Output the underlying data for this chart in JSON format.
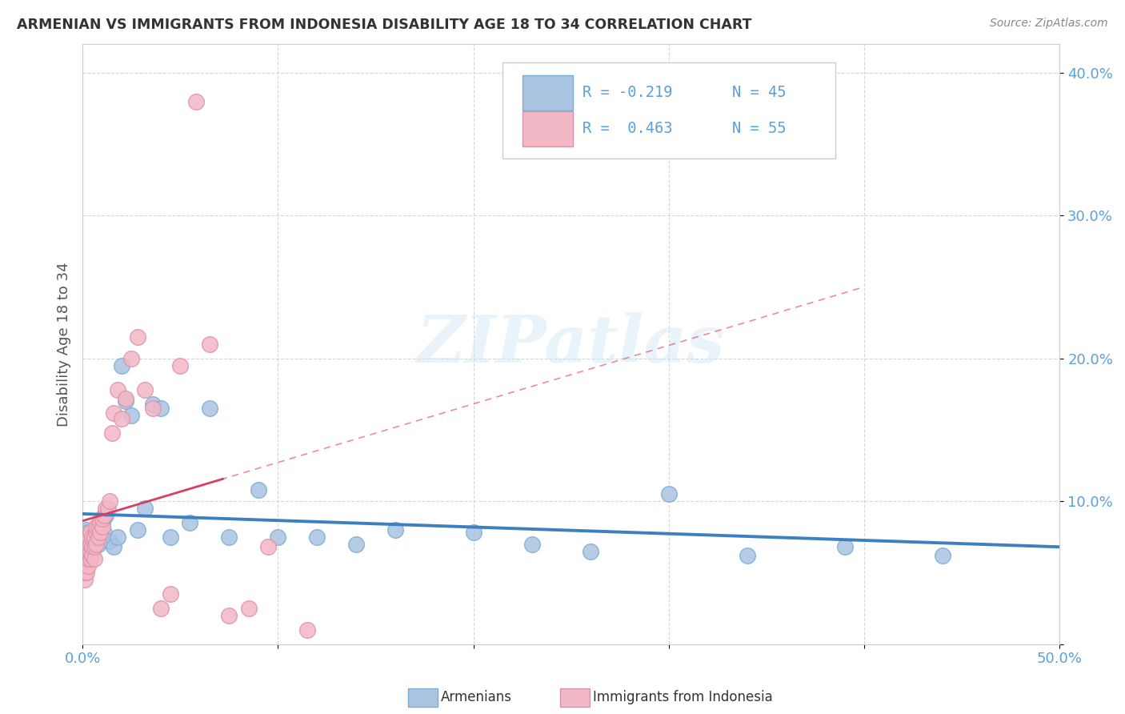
{
  "title": "ARMENIAN VS IMMIGRANTS FROM INDONESIA DISABILITY AGE 18 TO 34 CORRELATION CHART",
  "source": "Source: ZipAtlas.com",
  "ylabel": "Disability Age 18 to 34",
  "xlim": [
    0.0,
    0.5
  ],
  "ylim": [
    0.0,
    0.42
  ],
  "armenian_color": "#aac4e2",
  "armenian_edge_color": "#7aaed4",
  "indonesia_color": "#f2b8c6",
  "indonesia_edge_color": "#e090a8",
  "line_armenian_color": "#3d7fc1",
  "line_indonesia_color": "#d94060",
  "watermark_text": "ZIPatlas",
  "legend_R_armenian": "R = -0.219",
  "legend_N_armenian": "N = 45",
  "legend_R_indonesia": "R =  0.463",
  "legend_N_indonesia": "N = 55",
  "tick_color": "#5ba0d8",
  "axis_label_color": "#555555",
  "title_color": "#333333",
  "grid_color": "#cccccc",
  "background_color": "#ffffff",
  "armenian_x": [
    0.001,
    0.001,
    0.001,
    0.002,
    0.002,
    0.002,
    0.003,
    0.003,
    0.004,
    0.004,
    0.005,
    0.005,
    0.006,
    0.007,
    0.008,
    0.009,
    0.01,
    0.011,
    0.012,
    0.014,
    0.016,
    0.018,
    0.02,
    0.022,
    0.025,
    0.028,
    0.032,
    0.036,
    0.04,
    0.045,
    0.055,
    0.065,
    0.075,
    0.09,
    0.1,
    0.12,
    0.14,
    0.16,
    0.2,
    0.23,
    0.26,
    0.3,
    0.34,
    0.39,
    0.44
  ],
  "armenian_y": [
    0.06,
    0.07,
    0.075,
    0.065,
    0.072,
    0.08,
    0.068,
    0.078,
    0.06,
    0.07,
    0.065,
    0.073,
    0.068,
    0.075,
    0.07,
    0.08,
    0.085,
    0.078,
    0.09,
    0.072,
    0.068,
    0.075,
    0.195,
    0.17,
    0.16,
    0.08,
    0.095,
    0.168,
    0.165,
    0.075,
    0.085,
    0.165,
    0.075,
    0.108,
    0.075,
    0.075,
    0.07,
    0.08,
    0.078,
    0.07,
    0.065,
    0.105,
    0.062,
    0.068,
    0.062
  ],
  "indonesia_x": [
    0.001,
    0.001,
    0.001,
    0.001,
    0.002,
    0.002,
    0.002,
    0.002,
    0.002,
    0.003,
    0.003,
    0.003,
    0.003,
    0.003,
    0.004,
    0.004,
    0.004,
    0.004,
    0.005,
    0.005,
    0.005,
    0.006,
    0.006,
    0.006,
    0.007,
    0.007,
    0.007,
    0.008,
    0.008,
    0.009,
    0.009,
    0.01,
    0.01,
    0.011,
    0.012,
    0.013,
    0.014,
    0.015,
    0.016,
    0.018,
    0.02,
    0.022,
    0.025,
    0.028,
    0.032,
    0.036,
    0.04,
    0.045,
    0.05,
    0.058,
    0.065,
    0.075,
    0.085,
    0.095,
    0.115
  ],
  "indonesia_y": [
    0.045,
    0.05,
    0.055,
    0.06,
    0.05,
    0.058,
    0.062,
    0.068,
    0.072,
    0.055,
    0.06,
    0.065,
    0.07,
    0.075,
    0.06,
    0.065,
    0.07,
    0.078,
    0.062,
    0.068,
    0.075,
    0.06,
    0.068,
    0.075,
    0.07,
    0.078,
    0.082,
    0.075,
    0.082,
    0.078,
    0.085,
    0.082,
    0.088,
    0.09,
    0.095,
    0.095,
    0.1,
    0.148,
    0.162,
    0.178,
    0.158,
    0.172,
    0.2,
    0.215,
    0.178,
    0.165,
    0.025,
    0.035,
    0.195,
    0.38,
    0.21,
    0.02,
    0.025,
    0.068,
    0.01
  ],
  "ind_line_xstart": 0.0,
  "ind_line_xend": 0.075,
  "ind_dash_xstart": 0.0,
  "ind_dash_xend": 0.4
}
